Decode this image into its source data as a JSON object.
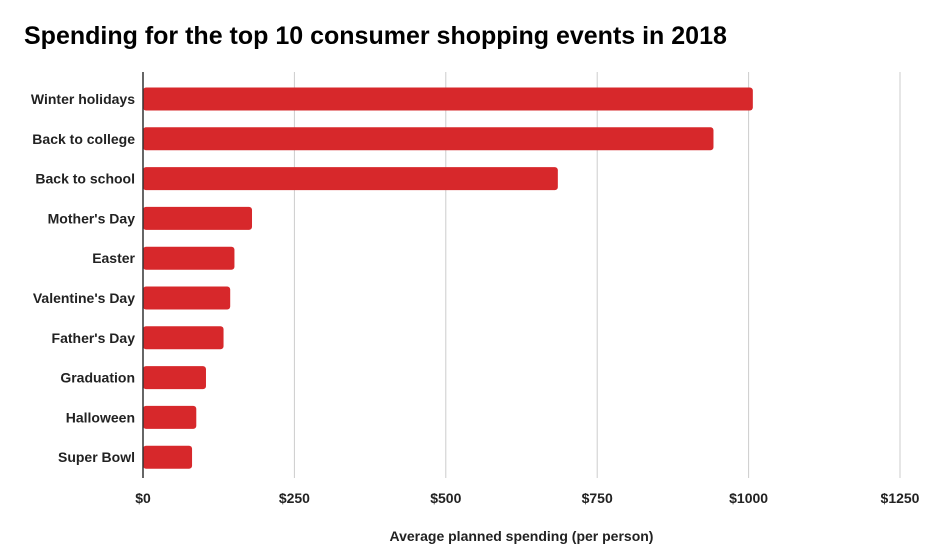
{
  "chart_data": {
    "type": "bar",
    "orientation": "horizontal",
    "title": "Spending for the top 10 consumer shopping events in 2018",
    "xlabel": "Average planned spending (per person)",
    "ylabel": "",
    "categories": [
      "Winter holidays",
      "Back to college",
      "Back to school",
      "Mother's Day",
      "Easter",
      "Valentine's Day",
      "Father's Day",
      "Graduation",
      "Halloween",
      "Super Bowl"
    ],
    "values": [
      1007,
      942,
      685,
      180,
      151,
      144,
      133,
      104,
      88,
      81
    ],
    "xlim": [
      0,
      1250
    ],
    "ticks": [
      0,
      250,
      500,
      750,
      1000,
      1250
    ],
    "tick_labels": [
      "$0",
      "$250",
      "$500",
      "$750",
      "$1000",
      "$1250"
    ],
    "grid": true,
    "legend": "none",
    "bar_color": "#d7282b",
    "grid_color": "#cccccc",
    "axis_color": "#333333"
  }
}
